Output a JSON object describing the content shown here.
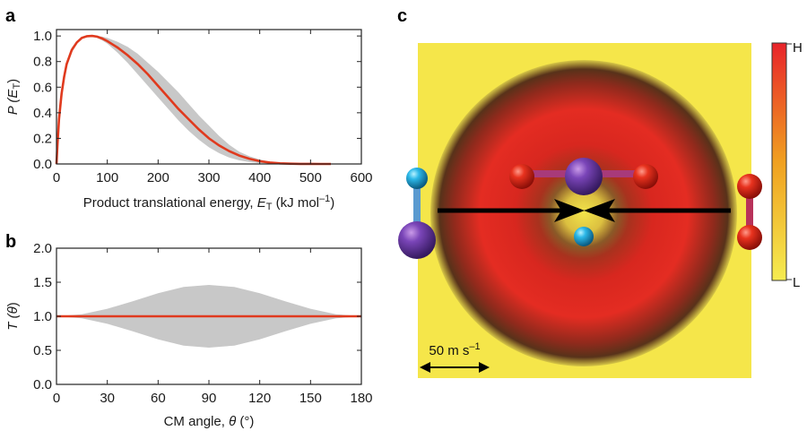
{
  "figure": {
    "panel_a_letter": "a",
    "panel_b_letter": "b",
    "panel_c_letter": "c"
  },
  "chart_data": [
    {
      "panel": "a",
      "type": "line",
      "title": "",
      "xlabel": {
        "prefix": "Product translational energy, ",
        "symbol": "E",
        "subscript": "T",
        "units": " (kJ mol",
        "exponent": "–1",
        "close": ")"
      },
      "ylabel": {
        "prefix": "P (",
        "symbol": "E",
        "subscript": "T",
        "close": ")"
      },
      "xlim": [
        0,
        600
      ],
      "ylim": [
        0,
        1.05
      ],
      "xticks": [
        "0",
        "100",
        "200",
        "300",
        "400",
        "500",
        "600"
      ],
      "yticks": [
        "0.0",
        "0.2",
        "0.4",
        "0.6",
        "0.8",
        "1.0"
      ],
      "series": [
        {
          "name": "best fit",
          "color": "#e03a1e",
          "x": [
            0,
            2,
            5,
            10,
            15,
            20,
            30,
            40,
            50,
            60,
            70,
            80,
            90,
            100,
            120,
            140,
            160,
            180,
            200,
            220,
            240,
            260,
            280,
            300,
            320,
            340,
            360,
            380,
            400,
            420,
            440,
            460,
            480,
            500,
            520,
            530,
            540
          ],
          "y": [
            0,
            0.15,
            0.35,
            0.55,
            0.68,
            0.78,
            0.89,
            0.95,
            0.985,
            0.998,
            1.0,
            0.995,
            0.98,
            0.96,
            0.91,
            0.85,
            0.78,
            0.7,
            0.61,
            0.52,
            0.43,
            0.35,
            0.27,
            0.2,
            0.145,
            0.1,
            0.065,
            0.04,
            0.022,
            0.011,
            0.005,
            0.002,
            0.001,
            0.0004,
            0.0001,
            0,
            0
          ]
        },
        {
          "name": "uncertainty upper bound",
          "color": "#c8c8c8",
          "x": [
            0,
            2,
            5,
            10,
            15,
            20,
            30,
            40,
            50,
            60,
            70,
            80,
            90,
            100,
            120,
            140,
            160,
            180,
            200,
            220,
            240,
            260,
            280,
            300,
            320,
            340,
            360,
            380,
            400,
            420,
            440,
            460,
            480,
            500,
            520,
            540
          ],
          "y": [
            0,
            0.16,
            0.37,
            0.57,
            0.7,
            0.8,
            0.91,
            0.96,
            0.99,
            1.0,
            1.0,
            1.0,
            0.995,
            0.985,
            0.955,
            0.915,
            0.86,
            0.79,
            0.72,
            0.64,
            0.56,
            0.47,
            0.38,
            0.3,
            0.22,
            0.15,
            0.095,
            0.06,
            0.035,
            0.018,
            0.008,
            0.003,
            0.001,
            0.0005,
            0,
            0
          ]
        },
        {
          "name": "uncertainty lower bound",
          "color": "#c8c8c8",
          "x": [
            0,
            2,
            5,
            10,
            15,
            20,
            30,
            40,
            50,
            60,
            70,
            80,
            90,
            100,
            120,
            140,
            160,
            180,
            200,
            220,
            240,
            260,
            280,
            300,
            320,
            340,
            360,
            380,
            400,
            420,
            440,
            460,
            480,
            500,
            520,
            540
          ],
          "y": [
            0,
            0.13,
            0.32,
            0.52,
            0.65,
            0.75,
            0.87,
            0.94,
            0.98,
            0.995,
            0.995,
            0.985,
            0.965,
            0.94,
            0.87,
            0.79,
            0.7,
            0.61,
            0.52,
            0.43,
            0.34,
            0.26,
            0.19,
            0.13,
            0.085,
            0.05,
            0.028,
            0.015,
            0.007,
            0.003,
            0.001,
            0,
            0,
            0,
            0,
            0
          ]
        }
      ]
    },
    {
      "panel": "b",
      "type": "line",
      "title": "",
      "xlabel": {
        "prefix": "CM angle, ",
        "symbol": "θ",
        "units": " (°)"
      },
      "ylabel": {
        "prefix": "T (",
        "symbol": "θ",
        "close": ")"
      },
      "xlim": [
        0,
        180
      ],
      "ylim": [
        0,
        2.0
      ],
      "xticks": [
        "0",
        "30",
        "60",
        "90",
        "120",
        "150",
        "180"
      ],
      "yticks": [
        "0.0",
        "0.5",
        "1.0",
        "1.5",
        "2.0"
      ],
      "series": [
        {
          "name": "best fit",
          "color": "#e03a1e",
          "x": [
            0,
            180
          ],
          "y": [
            1.0,
            1.0
          ]
        },
        {
          "name": "uncertainty upper bound",
          "color": "#c8c8c8",
          "x": [
            0,
            15,
            30,
            45,
            60,
            75,
            90,
            105,
            120,
            135,
            150,
            165,
            180
          ],
          "y": [
            1.0,
            1.03,
            1.11,
            1.22,
            1.34,
            1.43,
            1.46,
            1.43,
            1.34,
            1.22,
            1.11,
            1.03,
            1.0
          ]
        },
        {
          "name": "uncertainty lower bound",
          "color": "#c8c8c8",
          "x": [
            0,
            15,
            30,
            45,
            60,
            75,
            90,
            105,
            120,
            135,
            150,
            165,
            180
          ],
          "y": [
            1.0,
            0.97,
            0.89,
            0.78,
            0.66,
            0.57,
            0.54,
            0.57,
            0.66,
            0.78,
            0.89,
            0.97,
            1.0
          ]
        }
      ]
    },
    {
      "panel": "c",
      "type": "heatmap",
      "title": "",
      "colorbar": {
        "high_label": "H",
        "low_label": "L",
        "colors": [
          "#e8232a",
          "#f0a020",
          "#f5ec50"
        ]
      },
      "scale_bar": {
        "label": "50 m s",
        "exponent": "–1"
      },
      "molecules": {
        "left_atoms": [
          "cyan",
          "purple"
        ],
        "right_atoms": [
          "red",
          "red"
        ],
        "top_atoms": [
          "red",
          "purple",
          "red"
        ],
        "center_atom": "cyan"
      },
      "arrow_direction": "collinear, pointing inward"
    }
  ]
}
